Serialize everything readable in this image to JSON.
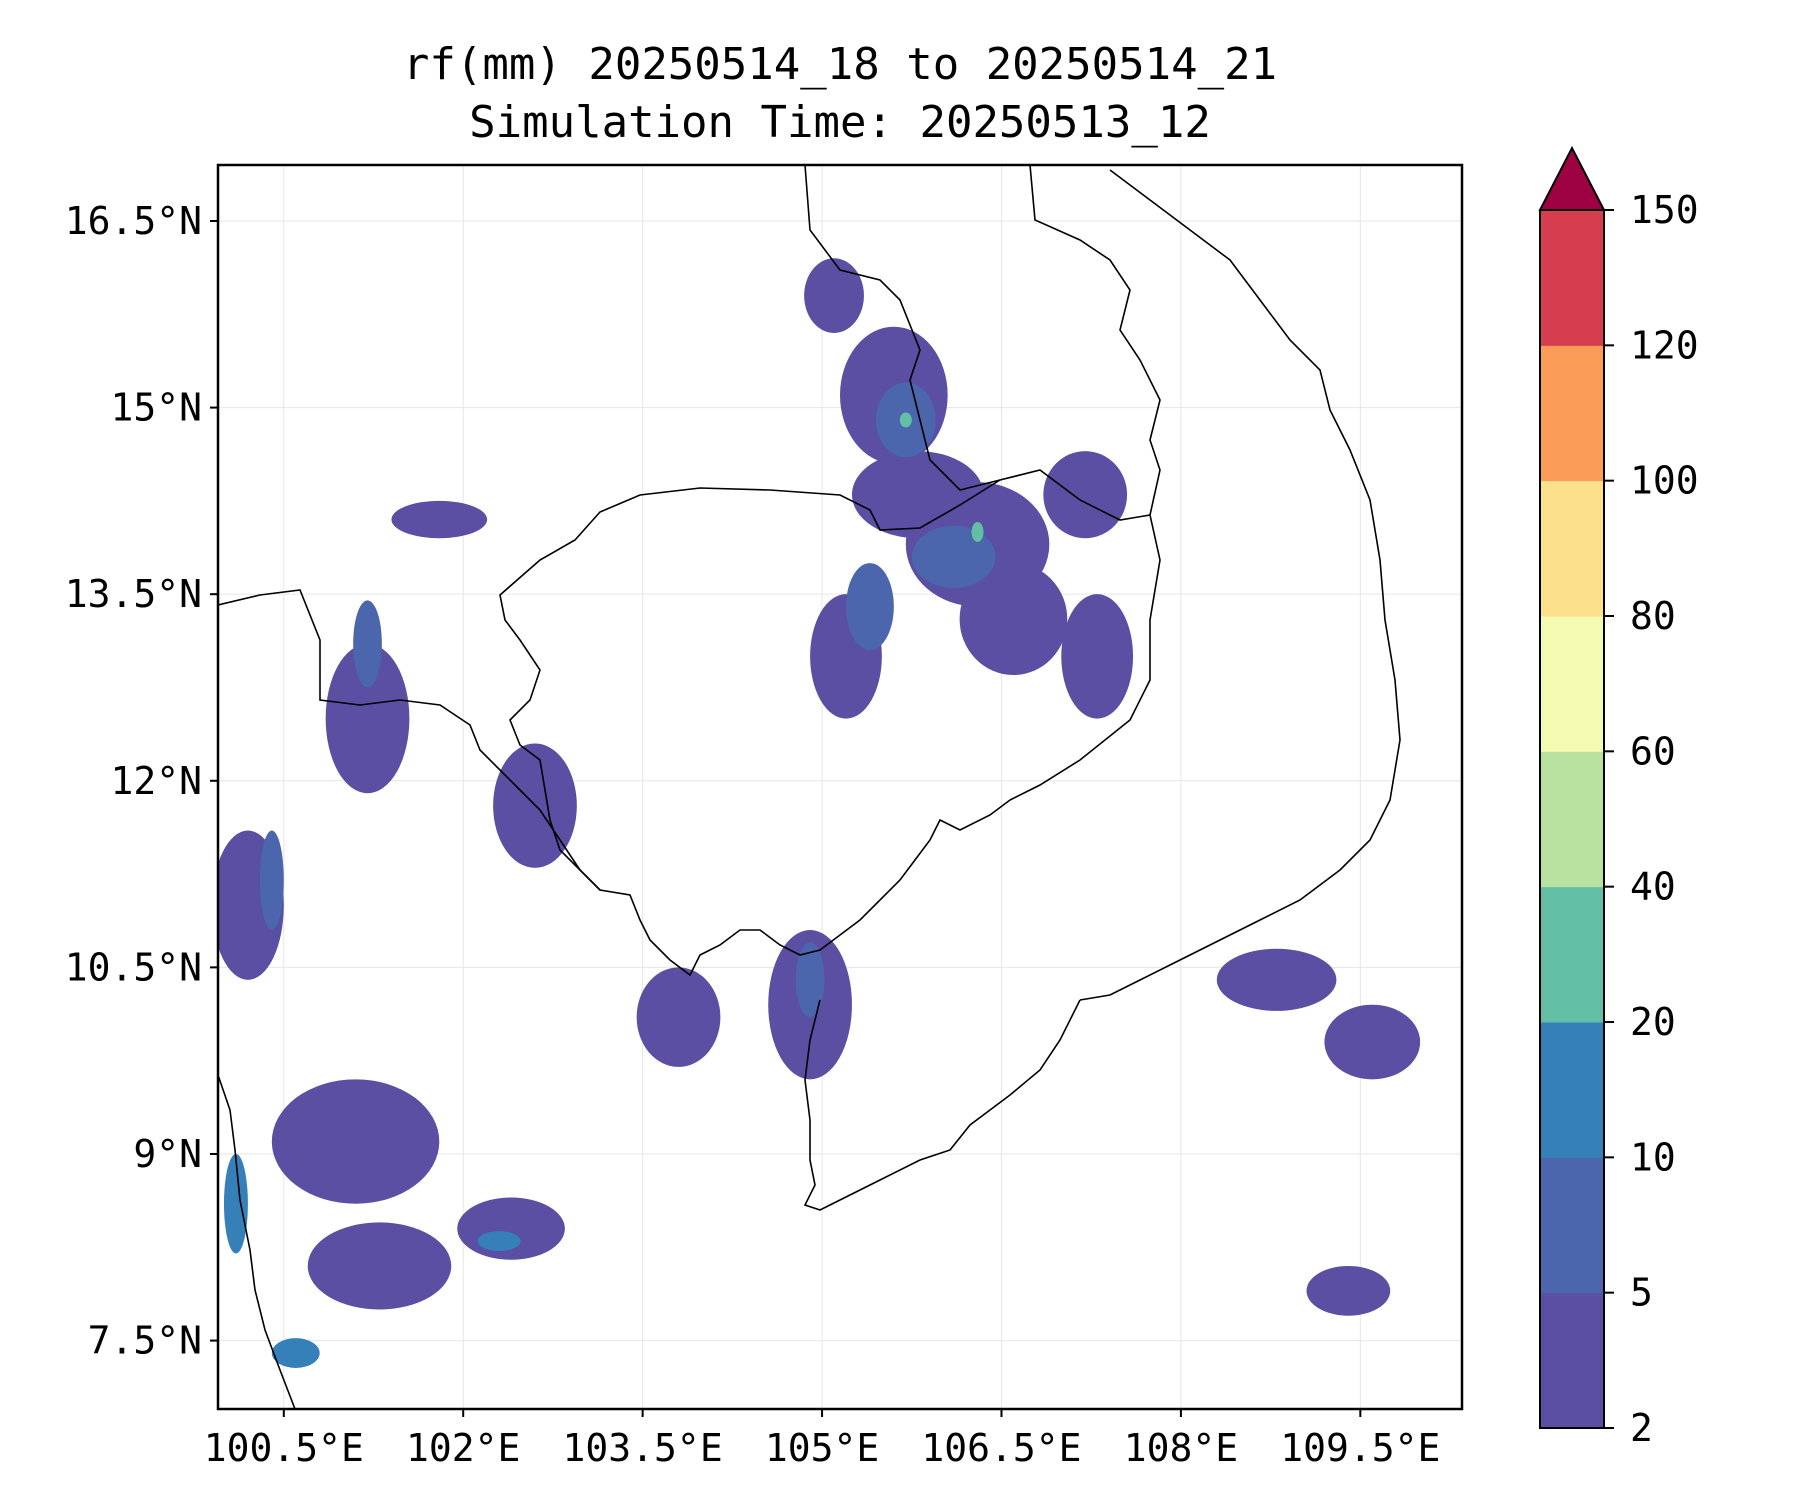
{
  "title": {
    "line1": "rf(mm) 20250514_18 to 20250514_21",
    "line2": "Simulation Time: 20250513_12"
  },
  "map": {
    "lon_range": [
      99.95,
      110.35
    ],
    "lat_range": [
      6.95,
      16.95
    ],
    "x_ticks": [
      {
        "lon": 100.5,
        "label": "100.5°E"
      },
      {
        "lon": 102.0,
        "label": "102°E"
      },
      {
        "lon": 103.5,
        "label": "103.5°E"
      },
      {
        "lon": 105.0,
        "label": "105°E"
      },
      {
        "lon": 106.5,
        "label": "106.5°E"
      },
      {
        "lon": 108.0,
        "label": "108°E"
      },
      {
        "lon": 109.5,
        "label": "109.5°E"
      }
    ],
    "y_ticks": [
      {
        "lat": 16.5,
        "label": "16.5°N"
      },
      {
        "lat": 15.0,
        "label": "15°N"
      },
      {
        "lat": 13.5,
        "label": "13.5°N"
      },
      {
        "lat": 12.0,
        "label": "12°N"
      },
      {
        "lat": 10.5,
        "label": "10.5°N"
      },
      {
        "lat": 9.0,
        "label": "9°N"
      },
      {
        "lat": 7.5,
        "label": "7.5°N"
      }
    ],
    "grid": true,
    "rain_cells": [
      {
        "lon": 105.6,
        "lat": 15.1,
        "rx": 0.45,
        "ry": 0.55,
        "level": 1
      },
      {
        "lon": 105.8,
        "lat": 14.3,
        "rx": 0.55,
        "ry": 0.35,
        "level": 1
      },
      {
        "lon": 106.3,
        "lat": 13.9,
        "rx": 0.6,
        "ry": 0.5,
        "level": 1
      },
      {
        "lon": 106.6,
        "lat": 13.3,
        "rx": 0.45,
        "ry": 0.45,
        "level": 1
      },
      {
        "lon": 105.2,
        "lat": 13.0,
        "rx": 0.3,
        "ry": 0.5,
        "level": 1
      },
      {
        "lon": 105.1,
        "lat": 15.9,
        "rx": 0.25,
        "ry": 0.3,
        "level": 1
      },
      {
        "lon": 107.3,
        "lat": 13.0,
        "rx": 0.3,
        "ry": 0.5,
        "level": 1
      },
      {
        "lon": 101.2,
        "lat": 12.5,
        "rx": 0.35,
        "ry": 0.6,
        "level": 1
      },
      {
        "lon": 100.2,
        "lat": 11.0,
        "rx": 0.3,
        "ry": 0.6,
        "level": 1
      },
      {
        "lon": 101.1,
        "lat": 9.1,
        "rx": 0.7,
        "ry": 0.5,
        "level": 1
      },
      {
        "lon": 101.3,
        "lat": 8.1,
        "rx": 0.6,
        "ry": 0.35,
        "level": 1
      },
      {
        "lon": 102.4,
        "lat": 8.4,
        "rx": 0.45,
        "ry": 0.25,
        "level": 1
      },
      {
        "lon": 102.6,
        "lat": 11.8,
        "rx": 0.35,
        "ry": 0.5,
        "level": 1
      },
      {
        "lon": 103.8,
        "lat": 10.1,
        "rx": 0.35,
        "ry": 0.4,
        "level": 1
      },
      {
        "lon": 104.9,
        "lat": 10.2,
        "rx": 0.35,
        "ry": 0.6,
        "level": 1
      },
      {
        "lon": 107.2,
        "lat": 14.3,
        "rx": 0.35,
        "ry": 0.35,
        "level": 1
      },
      {
        "lon": 101.8,
        "lat": 14.1,
        "rx": 0.4,
        "ry": 0.15,
        "level": 1
      },
      {
        "lon": 108.8,
        "lat": 10.4,
        "rx": 0.5,
        "ry": 0.25,
        "level": 1
      },
      {
        "lon": 109.6,
        "lat": 9.9,
        "rx": 0.4,
        "ry": 0.3,
        "level": 1
      },
      {
        "lon": 109.4,
        "lat": 7.9,
        "rx": 0.35,
        "ry": 0.2,
        "level": 1
      },
      {
        "lon": 105.7,
        "lat": 14.9,
        "rx": 0.25,
        "ry": 0.3,
        "level": 2
      },
      {
        "lon": 106.1,
        "lat": 13.8,
        "rx": 0.35,
        "ry": 0.25,
        "level": 2
      },
      {
        "lon": 105.4,
        "lat": 13.4,
        "rx": 0.2,
        "ry": 0.35,
        "level": 2
      },
      {
        "lon": 100.4,
        "lat": 11.2,
        "rx": 0.1,
        "ry": 0.4,
        "level": 2
      },
      {
        "lon": 101.2,
        "lat": 13.1,
        "rx": 0.12,
        "ry": 0.35,
        "level": 2
      },
      {
        "lon": 104.9,
        "lat": 10.4,
        "rx": 0.12,
        "ry": 0.3,
        "level": 2
      },
      {
        "lon": 100.1,
        "lat": 8.6,
        "rx": 0.1,
        "ry": 0.4,
        "level": 3
      },
      {
        "lon": 100.6,
        "lat": 7.4,
        "rx": 0.2,
        "ry": 0.12,
        "level": 3
      },
      {
        "lon": 102.3,
        "lat": 8.3,
        "rx": 0.18,
        "ry": 0.08,
        "level": 3
      },
      {
        "lon": 105.7,
        "lat": 14.9,
        "rx": 0.05,
        "ry": 0.06,
        "level": 4
      },
      {
        "lon": 106.3,
        "lat": 14.0,
        "rx": 0.05,
        "ry": 0.08,
        "level": 4
      }
    ]
  },
  "colorbar": {
    "levels": [
      "2",
      "5",
      "10",
      "20",
      "40",
      "60",
      "80",
      "100",
      "120",
      "150"
    ],
    "colors": [
      "#5a4fa2",
      "#4b66ad",
      "#3680ba",
      "#63bea6",
      "#b9e2a1",
      "#f3fab1",
      "#fde08b",
      "#fb9c59",
      "#d63e4f",
      "#9e0142"
    ],
    "extend": "max"
  }
}
